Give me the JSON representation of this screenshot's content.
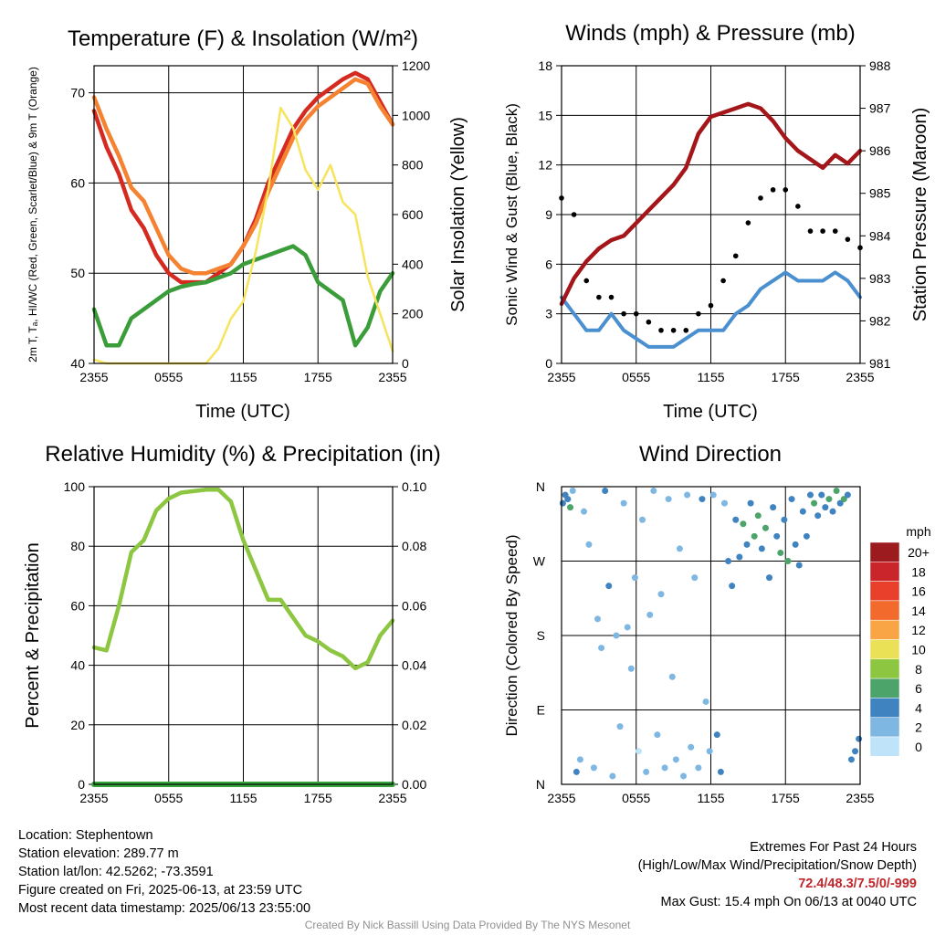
{
  "colors": {
    "temp": "#d42a20",
    "dewpoint": "#3a9d3a",
    "heat_index": "#2b6fc0",
    "temp9m": "#f58230",
    "insolation": "#f6e45c",
    "wind": "#4a90d0",
    "gust": "#000000",
    "pressure": "#a4161a",
    "rh": "#8dc641",
    "precip": "#35a53c"
  },
  "footer": {
    "location": "Location: Stephentown",
    "elevation": "Station elevation: 289.77 m",
    "latlon": "Station lat/lon: 42.5262; -73.3591",
    "created": "Figure created on Fri, 2025-06-13, at 23:59 UTC",
    "recent": "Most recent data timestamp: 2025/06/13 23:55:00",
    "extremes_title": "Extremes For Past 24 Hours",
    "extremes_subtitle": "(High/Low/Max Wind/Precipitation/Snow Depth)",
    "extremes_values": "72.4/48.3/7.5/0/-999",
    "max_gust": "Max Gust: 15.4 mph On 06/13 at 0040 UTC",
    "credit": "Created By Nick Bassill Using Data Provided By The NYS Mesonet"
  },
  "chart_data": [
    {
      "id": "temp",
      "type": "line",
      "title": "Temperature (F) & Insolation (W/m²)",
      "xlabel": "Time (UTC)",
      "ylabel": "2m T, Tₐ, HI/WC (Red, Green, Scarlet/Blue) & 9m T (Orange)",
      "y2label": "Solar Insolation (Yellow)",
      "xticks": [
        "2355",
        "0555",
        "1155",
        "1755",
        "2355"
      ],
      "ylim": [
        40,
        73
      ],
      "yticks": [
        40,
        50,
        60,
        70
      ],
      "y2lim": [
        0,
        1200
      ],
      "y2ticks": [
        0,
        200,
        400,
        600,
        800,
        1000,
        1200
      ],
      "grid": true,
      "x": [
        0,
        1,
        2,
        3,
        4,
        5,
        6,
        7,
        8,
        9,
        10,
        11,
        12,
        13,
        14,
        15,
        16,
        17,
        18,
        19,
        20,
        21,
        22,
        23,
        24
      ],
      "series": [
        {
          "name": "2m T",
          "axis": "left",
          "color": "#d42a20",
          "values": [
            68,
            64,
            61,
            57,
            55,
            52,
            50,
            49,
            49,
            49,
            50,
            51,
            53,
            56,
            60,
            63,
            66,
            68,
            69.5,
            70.5,
            71.5,
            72.2,
            71.5,
            69,
            66.5
          ]
        },
        {
          "name": "9m T",
          "axis": "left",
          "color": "#f58230",
          "values": [
            69.5,
            66,
            63,
            59.5,
            58,
            55,
            52,
            50.5,
            50,
            50,
            50.5,
            51,
            53,
            55.5,
            59,
            62,
            65,
            67,
            68.5,
            69.5,
            70.5,
            71.5,
            71,
            68.5,
            66.5
          ]
        },
        {
          "name": "T_d",
          "axis": "left",
          "color": "#3a9d3a",
          "values": [
            46,
            42,
            42,
            45,
            46,
            47,
            48,
            48.5,
            48.8,
            49,
            49.5,
            50,
            51,
            51.5,
            52,
            52.5,
            53,
            52,
            49,
            48,
            47,
            42,
            44,
            48,
            50
          ]
        },
        {
          "name": "Insolation",
          "axis": "right",
          "color": "#f6e45c",
          "values": [
            15,
            0,
            0,
            0,
            0,
            0,
            0,
            0,
            0,
            0,
            60,
            180,
            250,
            450,
            700,
            1030,
            950,
            780,
            700,
            800,
            650,
            600,
            350,
            200,
            50
          ]
        }
      ]
    },
    {
      "id": "wind",
      "type": "scatter",
      "title": "Winds (mph) & Pressure (mb)",
      "xlabel": "Time (UTC)",
      "ylabel": "Sonic Wind & Gust (Blue, Black)",
      "y2label": "Station Pressure (Maroon)",
      "xticks": [
        "2355",
        "0555",
        "1155",
        "1755",
        "2355"
      ],
      "ylim": [
        0,
        18
      ],
      "yticks": [
        0,
        3,
        6,
        9,
        12,
        15,
        18
      ],
      "y2lim": [
        981,
        988
      ],
      "y2ticks": [
        981,
        982,
        983,
        984,
        985,
        986,
        987,
        988
      ],
      "grid": true,
      "x": [
        0,
        1,
        2,
        3,
        4,
        5,
        6,
        7,
        8,
        9,
        10,
        11,
        12,
        13,
        14,
        15,
        16,
        17,
        18,
        19,
        20,
        21,
        22,
        23,
        24
      ],
      "series": [
        {
          "name": "Sonic Wind",
          "axis": "left",
          "color": "#4a90d0",
          "values": [
            4,
            3,
            2,
            2,
            3,
            2,
            1.5,
            1,
            1,
            1,
            1.5,
            2,
            2,
            2,
            3,
            3.5,
            4.5,
            5,
            5.5,
            5,
            5,
            5,
            5.5,
            5,
            4
          ]
        },
        {
          "name": "Gust",
          "axis": "left",
          "color": "#000000",
          "values": [
            10,
            9,
            5,
            4,
            4,
            3,
            3,
            2.5,
            2,
            2,
            2,
            3,
            3.5,
            5,
            6.5,
            8.5,
            10,
            10.5,
            10.5,
            9.5,
            8,
            8,
            8,
            7.5,
            7
          ]
        },
        {
          "name": "Station Pressure",
          "axis": "right",
          "color": "#a4161a",
          "values": [
            982.4,
            983,
            983.4,
            983.7,
            983.9,
            984,
            984.3,
            984.6,
            984.9,
            985.2,
            985.6,
            986.4,
            986.8,
            986.9,
            987.0,
            987.1,
            987.0,
            986.7,
            986.3,
            986.0,
            985.8,
            985.6,
            985.9,
            985.7,
            986.0
          ]
        }
      ]
    },
    {
      "id": "rh",
      "type": "line",
      "title": "Relative Humidity (%) & Precipitation (in)",
      "xlabel": "",
      "ylabel": "Percent & Precipitation",
      "xticks": [
        "2355",
        "0555",
        "1155",
        "1755",
        "2355"
      ],
      "ylim": [
        0,
        100
      ],
      "yticks": [
        0,
        20,
        40,
        60,
        80,
        100
      ],
      "y2lim": [
        0,
        0.1
      ],
      "y2ticks": [
        "0.00",
        "0.02",
        "0.04",
        "0.06",
        "0.08",
        "0.10"
      ],
      "grid": true,
      "x": [
        0,
        1,
        2,
        3,
        4,
        5,
        6,
        7,
        8,
        9,
        10,
        11,
        12,
        13,
        14,
        15,
        16,
        17,
        18,
        19,
        20,
        21,
        22,
        23,
        24
      ],
      "series": [
        {
          "name": "RH",
          "axis": "left",
          "color": "#8dc641",
          "values": [
            46,
            45,
            60,
            78,
            82,
            92,
            96,
            98,
            98.5,
            99,
            99,
            95,
            82,
            72,
            62,
            62,
            56,
            50,
            48,
            45,
            43,
            39,
            41,
            50,
            55
          ]
        },
        {
          "name": "Precip",
          "axis": "right",
          "color": "#35a53c",
          "values": [
            0,
            0,
            0,
            0,
            0,
            0,
            0,
            0,
            0,
            0,
            0,
            0,
            0,
            0,
            0,
            0,
            0,
            0,
            0,
            0,
            0,
            0,
            0,
            0,
            0
          ]
        }
      ]
    },
    {
      "id": "dir",
      "type": "scatter",
      "title": "Wind Direction",
      "xlabel": "",
      "ylabel": "Direction (Colored By Speed)",
      "xticks": [
        "2355",
        "0555",
        "1155",
        "1755",
        "2355"
      ],
      "yticks": [
        "N",
        "E",
        "S",
        "W",
        "N"
      ],
      "ylim": [
        0,
        360
      ],
      "grid": true,
      "legend": {
        "title": "mph",
        "labels": [
          "20+",
          "18",
          "16",
          "14",
          "12",
          "10",
          "8",
          "6",
          "4",
          "2",
          "0"
        ],
        "colors": [
          "#9b1b1f",
          "#c9252b",
          "#e8402a",
          "#f26b2d",
          "#f9a545",
          "#ebe157",
          "#8dc641",
          "#4da46a",
          "#3f83c0",
          "#7fb7e3",
          "#bfe3f8"
        ],
        "placement": "right"
      },
      "points": [
        [
          0.1,
          340,
          4
        ],
        [
          0.3,
          350,
          4
        ],
        [
          0.5,
          345,
          5
        ],
        [
          0.7,
          335,
          6
        ],
        [
          0.9,
          355,
          3
        ],
        [
          1.2,
          15,
          4
        ],
        [
          1.5,
          30,
          3
        ],
        [
          1.8,
          330,
          2
        ],
        [
          2.2,
          290,
          3
        ],
        [
          2.6,
          20,
          2
        ],
        [
          2.9,
          200,
          2
        ],
        [
          3.2,
          165,
          3
        ],
        [
          3.5,
          355,
          5
        ],
        [
          3.8,
          240,
          4
        ],
        [
          4.1,
          10,
          3
        ],
        [
          4.4,
          180,
          3
        ],
        [
          4.7,
          70,
          2
        ],
        [
          5.0,
          340,
          2
        ],
        [
          5.3,
          190,
          3
        ],
        [
          5.6,
          140,
          2
        ],
        [
          5.9,
          250,
          3
        ],
        [
          6.2,
          40,
          1
        ],
        [
          6.5,
          320,
          2
        ],
        [
          6.8,
          15,
          2
        ],
        [
          7.1,
          205,
          2
        ],
        [
          7.4,
          355,
          3
        ],
        [
          7.7,
          60,
          2
        ],
        [
          8.0,
          230,
          2
        ],
        [
          8.3,
          20,
          2
        ],
        [
          8.6,
          345,
          3
        ],
        [
          8.9,
          130,
          2
        ],
        [
          9.2,
          30,
          3
        ],
        [
          9.5,
          285,
          2
        ],
        [
          9.8,
          10,
          2
        ],
        [
          10.1,
          350,
          3
        ],
        [
          10.4,
          45,
          2
        ],
        [
          10.7,
          250,
          2
        ],
        [
          11.0,
          20,
          3
        ],
        [
          11.3,
          345,
          4
        ],
        [
          11.6,
          100,
          2
        ],
        [
          11.9,
          40,
          3
        ],
        [
          12.2,
          350,
          3
        ],
        [
          12.5,
          60,
          4
        ],
        [
          12.8,
          15,
          4
        ],
        [
          13.1,
          340,
          3
        ],
        [
          13.4,
          270,
          4
        ],
        [
          13.7,
          240,
          4
        ],
        [
          14.0,
          320,
          5
        ],
        [
          14.3,
          275,
          5
        ],
        [
          14.6,
          315,
          6
        ],
        [
          14.9,
          290,
          5
        ],
        [
          15.2,
          340,
          4
        ],
        [
          15.5,
          300,
          6
        ],
        [
          15.8,
          325,
          7
        ],
        [
          16.1,
          285,
          5
        ],
        [
          16.4,
          310,
          6
        ],
        [
          16.7,
          250,
          4
        ],
        [
          17.0,
          335,
          5
        ],
        [
          17.3,
          300,
          4
        ],
        [
          17.6,
          280,
          6
        ],
        [
          17.9,
          320,
          5
        ],
        [
          18.2,
          270,
          6
        ],
        [
          18.5,
          345,
          4
        ],
        [
          18.8,
          290,
          4
        ],
        [
          19.1,
          265,
          5
        ],
        [
          19.4,
          330,
          4
        ],
        [
          19.7,
          300,
          5
        ],
        [
          20.0,
          350,
          4
        ],
        [
          20.3,
          340,
          6
        ],
        [
          20.6,
          325,
          4
        ],
        [
          20.9,
          350,
          5
        ],
        [
          21.2,
          335,
          4
        ],
        [
          21.5,
          345,
          6
        ],
        [
          21.8,
          330,
          4
        ],
        [
          22.1,
          355,
          7
        ],
        [
          22.4,
          340,
          4
        ],
        [
          22.7,
          345,
          6
        ],
        [
          23.0,
          350,
          4
        ],
        [
          23.3,
          30,
          4
        ],
        [
          23.6,
          40,
          4
        ],
        [
          23.9,
          55,
          4
        ]
      ]
    }
  ]
}
